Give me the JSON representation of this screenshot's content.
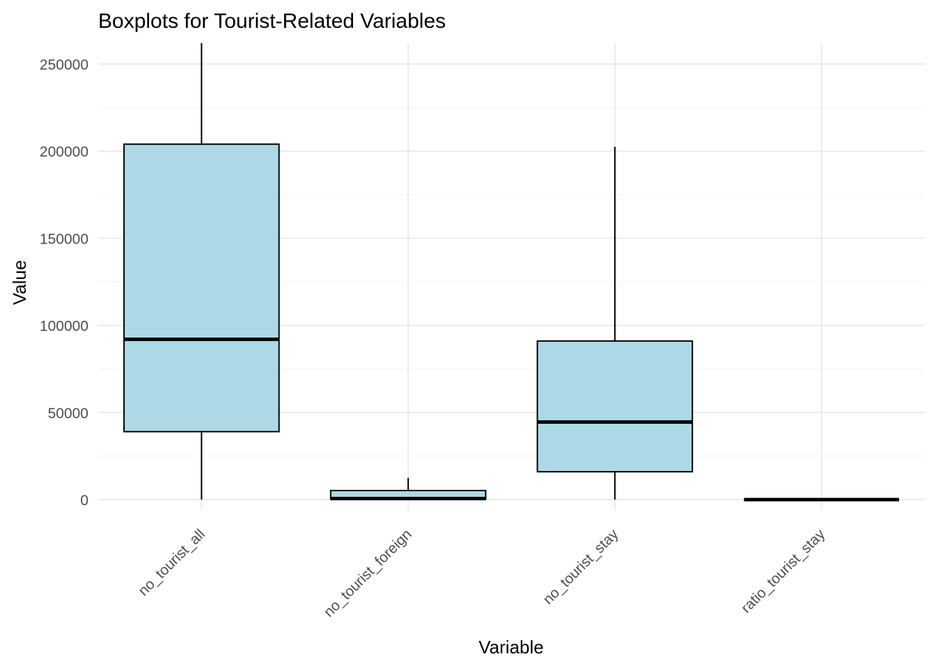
{
  "chart_data": {
    "type": "boxplot",
    "title": "Boxplots for Tourist-Related Variables",
    "xlabel": "Variable",
    "ylabel": "Value",
    "ylim": [
      -6000,
      262000
    ],
    "yticks": [
      0,
      50000,
      100000,
      150000,
      200000,
      250000
    ],
    "ytick_labels": [
      "0",
      "50000",
      "100000",
      "150000",
      "200000",
      "250000"
    ],
    "grid": true,
    "box_fill": "#add8e6",
    "box_stroke": "#000000",
    "categories": [
      "no_tourist_all",
      "no_tourist_foreign",
      "no_tourist_stay",
      "ratio_tourist_stay"
    ],
    "boxes": [
      {
        "category": "no_tourist_all",
        "whisker_low": 0,
        "q1": 39000,
        "median": 92000,
        "q3": 204000,
        "whisker_high": 262000
      },
      {
        "category": "no_tourist_foreign",
        "whisker_low": 0,
        "q1": 200,
        "median": 600,
        "q3": 5200,
        "whisker_high": 12500
      },
      {
        "category": "no_tourist_stay",
        "whisker_low": 0,
        "q1": 16000,
        "median": 44500,
        "q3": 91000,
        "whisker_high": 202500
      },
      {
        "category": "ratio_tourist_stay",
        "whisker_low": 0,
        "q1": 0,
        "median": 0,
        "q3": 0,
        "whisker_high": 0
      }
    ]
  }
}
